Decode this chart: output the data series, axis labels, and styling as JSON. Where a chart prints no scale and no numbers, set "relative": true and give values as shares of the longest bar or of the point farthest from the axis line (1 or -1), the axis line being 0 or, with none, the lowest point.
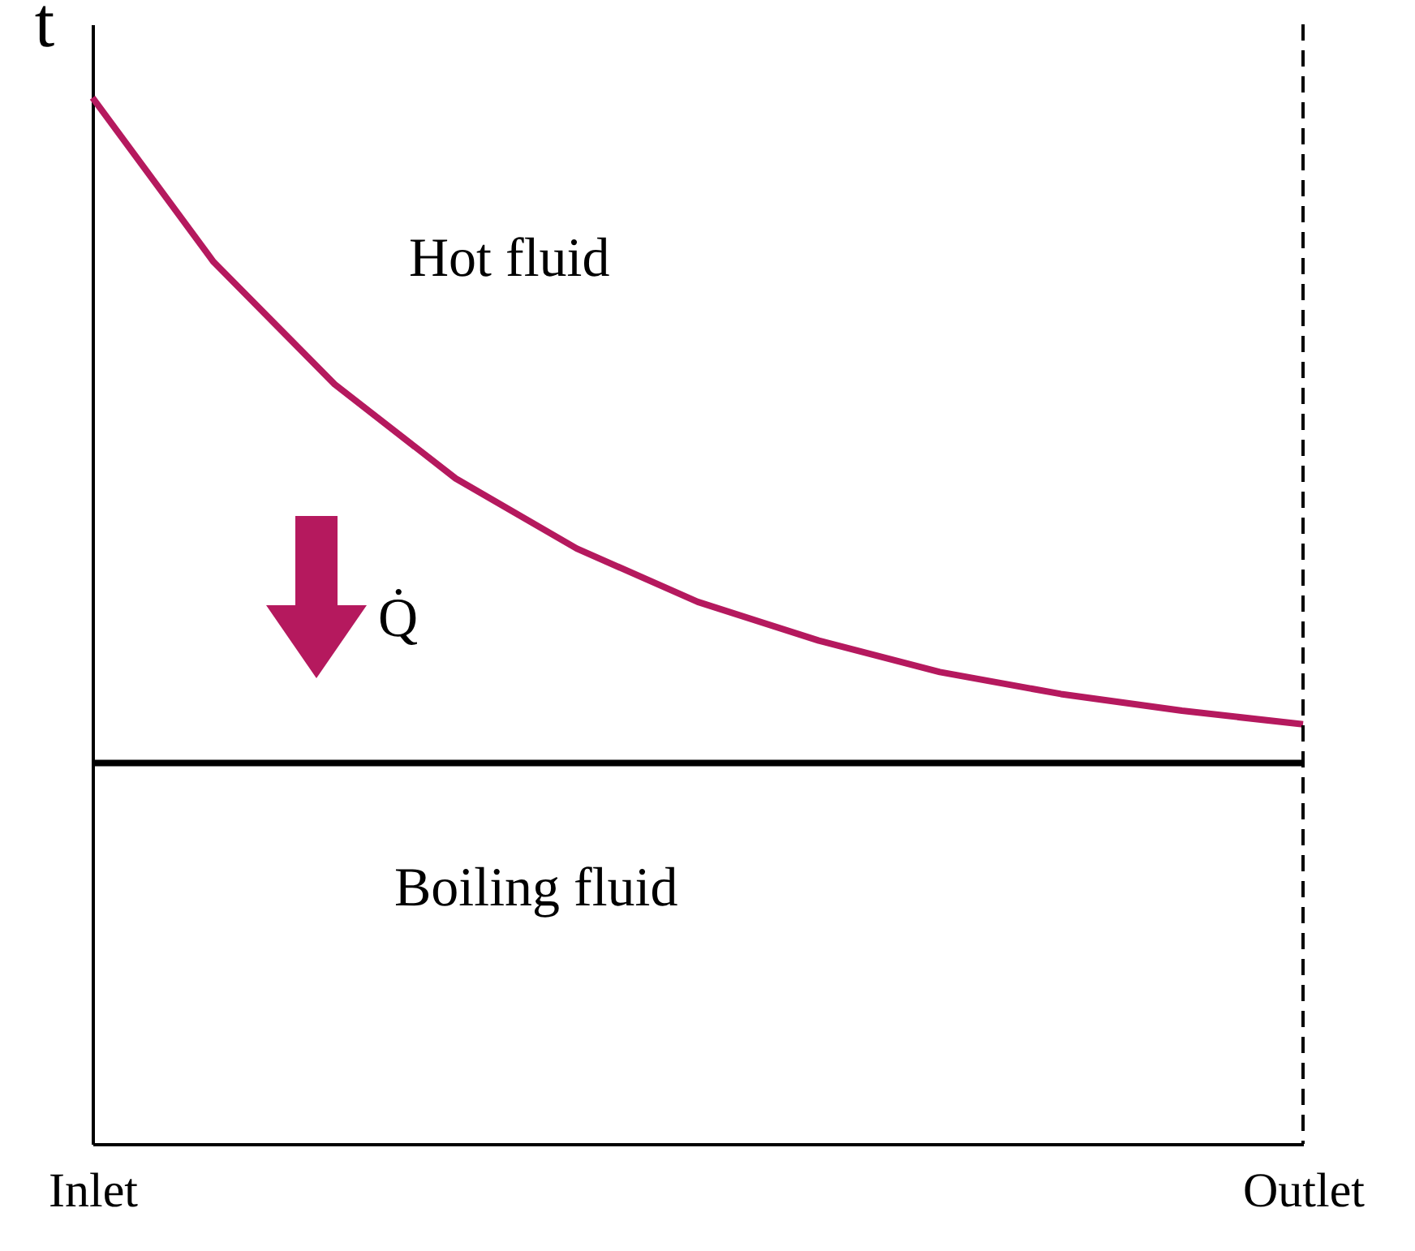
{
  "chart_data": {
    "type": "line",
    "relative": true,
    "ylabel": "t",
    "tick_labels": "x",
    "line_style": "solid",
    "categories": [
      "Inlet",
      null,
      null,
      null,
      null,
      null,
      null,
      null,
      null,
      null,
      "Outlet"
    ],
    "series": [
      {
        "color": "#b5195e",
        "values": [
          1.0,
          0.843,
          0.726,
          0.636,
          0.569,
          0.518,
          0.481,
          0.451,
          0.43,
          0.414,
          0.401
        ]
      },
      {
        "color": "#000000",
        "values": [
          0.364,
          0.364,
          0.364,
          0.364,
          0.364,
          0.364,
          0.364,
          0.364,
          0.364,
          0.364,
          0.364
        ]
      }
    ],
    "ref_lines": [
      {
        "axis": "x",
        "value": "Outlet",
        "color": "#000000",
        "line_style": "dashed"
      }
    ],
    "annotations": [
      "Hot fluid",
      "Q̇",
      "Boiling fluid"
    ]
  }
}
